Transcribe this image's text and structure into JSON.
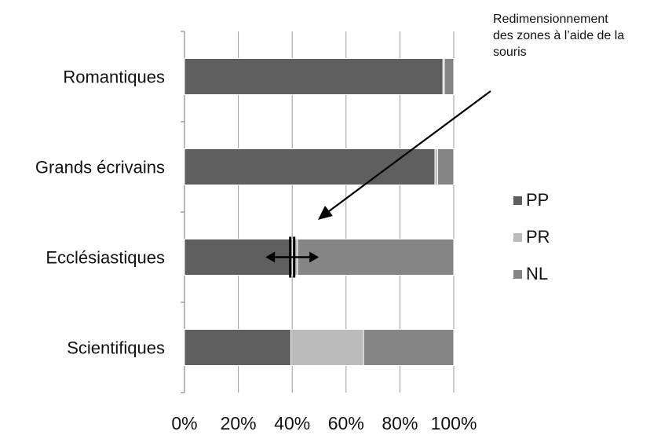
{
  "chart_data": {
    "type": "bar",
    "orientation": "horizontal",
    "stacked": "percent",
    "categories": [
      "Romantiques",
      "Grands écrivains",
      "Ecclésiastiques",
      "Scientifiques"
    ],
    "series": [
      {
        "name": "PP",
        "values": [
          96,
          93,
          40,
          39.5
        ],
        "color": "#5f5f5f"
      },
      {
        "name": "PR",
        "values": [
          0.5,
          1,
          2,
          27
        ],
        "color": "#bbbbbb"
      },
      {
        "name": "NL",
        "values": [
          3.5,
          6,
          58,
          33.5
        ],
        "color": "#858585"
      }
    ],
    "xlim": [
      0,
      100
    ],
    "x_tick_labels": [
      "0%",
      "20%",
      "40%",
      "60%",
      "80%",
      "100%"
    ],
    "grid": "vertical",
    "legend": "right",
    "annotation": {
      "lines": [
        "Redimensionnement",
        "des zones à l’aide de la",
        "souris"
      ],
      "arrow_points_to": "Ecclésiastiques PP/NL boundary"
    },
    "resize_handle": {
      "category": "Ecclésiastiques",
      "position": 40,
      "icon": "double-headed-horizontal-arrow-icon"
    }
  }
}
